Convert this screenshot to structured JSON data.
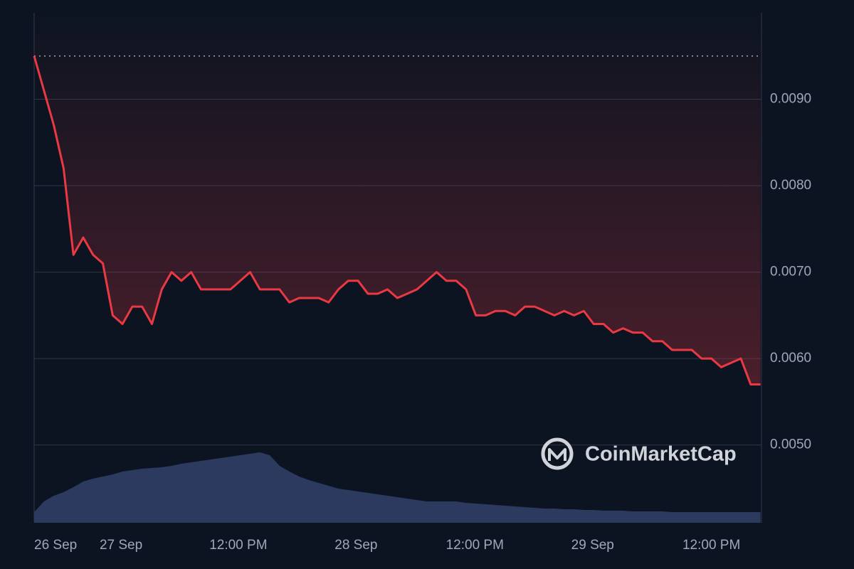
{
  "chart_data": {
    "type": "line",
    "x": [
      0,
      1,
      2,
      3,
      4,
      5,
      6,
      7,
      8,
      9,
      10,
      11,
      12,
      13,
      14,
      15,
      16,
      17,
      18,
      19,
      20,
      21,
      22,
      23,
      24,
      25,
      26,
      27,
      28,
      29,
      30,
      31,
      32,
      33,
      34,
      35,
      36,
      37,
      38,
      39,
      40,
      41,
      42,
      43,
      44,
      45,
      46,
      47,
      48,
      49,
      50,
      51,
      52,
      53,
      54,
      55,
      56,
      57,
      58,
      59,
      60,
      61,
      62,
      63,
      64,
      65,
      66,
      67,
      68,
      69,
      70,
      71,
      72,
      73,
      74
    ],
    "values": [
      0.0095,
      0.0091,
      0.0087,
      0.0082,
      0.0072,
      0.0074,
      0.0072,
      0.0071,
      0.0065,
      0.0064,
      0.0066,
      0.0066,
      0.0064,
      0.0068,
      0.007,
      0.0069,
      0.007,
      0.0068,
      0.0068,
      0.0068,
      0.0068,
      0.0069,
      0.007,
      0.0068,
      0.0068,
      0.0068,
      0.00665,
      0.0067,
      0.0067,
      0.0067,
      0.00665,
      0.0068,
      0.0069,
      0.0069,
      0.00675,
      0.00675,
      0.0068,
      0.0067,
      0.00675,
      0.0068,
      0.0069,
      0.007,
      0.0069,
      0.0069,
      0.0068,
      0.0065,
      0.0065,
      0.00655,
      0.00655,
      0.0065,
      0.0066,
      0.0066,
      0.00655,
      0.0065,
      0.00655,
      0.0065,
      0.00655,
      0.0064,
      0.0064,
      0.0063,
      0.00635,
      0.0063,
      0.0063,
      0.0062,
      0.0062,
      0.0061,
      0.0061,
      0.0061,
      0.006,
      0.006,
      0.0059,
      0.00595,
      0.006,
      0.0057,
      0.0057
    ],
    "color": "#ea3943",
    "volume": {
      "color": "#2c3a60",
      "values": [
        15,
        30,
        38,
        43,
        50,
        58,
        62,
        65,
        68,
        72,
        74,
        76,
        77,
        78,
        80,
        83,
        85,
        87,
        89,
        91,
        93,
        95,
        97,
        99,
        95,
        80,
        72,
        65,
        60,
        56,
        52,
        48,
        46,
        44,
        42,
        40,
        38,
        36,
        34,
        32,
        30,
        30,
        30,
        30,
        28,
        27,
        26,
        25,
        24,
        23,
        22,
        21,
        20,
        20,
        19,
        19,
        18,
        18,
        17,
        17,
        17,
        16,
        16,
        16,
        16,
        15,
        15,
        15,
        15,
        15,
        15,
        15,
        15,
        15,
        15
      ]
    },
    "volume_lim": [
      0,
      717
    ],
    "xlim": [
      0,
      74.1
    ],
    "ylim": [
      0.0041,
      0.01
    ],
    "xticks": [
      {
        "value": 0,
        "label": "26 Sep"
      },
      {
        "value": 8.85,
        "label": "27 Sep"
      },
      {
        "value": 20.8,
        "label": "12:00 PM"
      },
      {
        "value": 32.8,
        "label": "28 Sep"
      },
      {
        "value": 44.9,
        "label": "12:00 PM"
      },
      {
        "value": 56.9,
        "label": "29 Sep"
      },
      {
        "value": 69.0,
        "label": "12:00 PM"
      }
    ],
    "yticks": [
      {
        "value": 0.005,
        "label": "0.0050"
      },
      {
        "value": 0.006,
        "label": "0.0060"
      },
      {
        "value": 0.007,
        "label": "0.0070"
      },
      {
        "value": 0.008,
        "label": "0.0080"
      },
      {
        "value": 0.009,
        "label": "0.0090"
      }
    ],
    "grid": true,
    "watermark": "CoinMarketCap"
  }
}
